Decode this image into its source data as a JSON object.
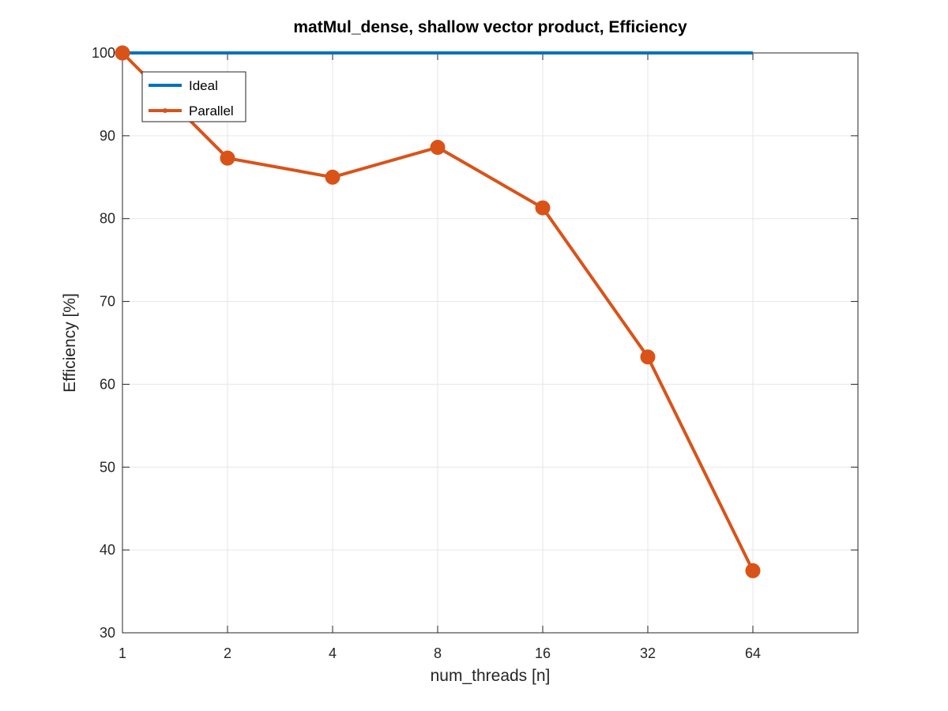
{
  "chart_data": {
    "type": "line",
    "title": "matMul_dense, shallow vector product, Efficiency",
    "xlabel": "num_threads [n]",
    "ylabel": "Efficiency [%]",
    "x_scale": "log2",
    "x": [
      1,
      2,
      4,
      8,
      16,
      32,
      64
    ],
    "x_ticks": [
      "1",
      "2",
      "4",
      "8",
      "16",
      "32",
      "64"
    ],
    "xlim": [
      1,
      128
    ],
    "ylim": [
      30,
      100
    ],
    "y_ticks": [
      30,
      40,
      50,
      60,
      70,
      80,
      90,
      100
    ],
    "grid": true,
    "legend_position": "top-left",
    "series": [
      {
        "name": "Ideal",
        "color": "#0072bd",
        "marker": "none",
        "values": [
          100,
          100,
          100,
          100,
          100,
          100,
          100
        ]
      },
      {
        "name": "Parallel",
        "color": "#d95319",
        "marker": "circle",
        "values": [
          100,
          87.3,
          85.0,
          88.6,
          81.3,
          63.3,
          37.5
        ]
      }
    ]
  }
}
